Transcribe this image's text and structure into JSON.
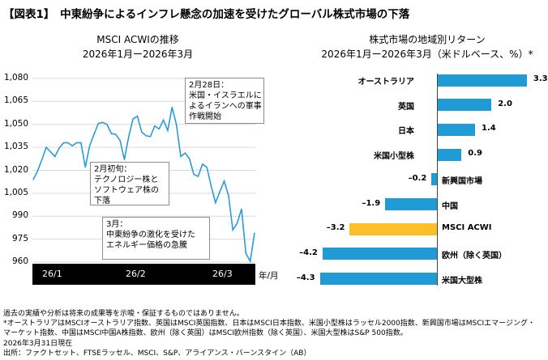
{
  "title": "【図表1】　中東紛争によるインフレ懸念の加速を受けたグローバル株式市場の下落",
  "chart_data": [
    {
      "type": "line",
      "title": "MSCI ACWIの推移",
      "subtitle": "2026年1月ー2026年3月",
      "xlabel": "年/月",
      "x_tick_labels": [
        "26/1",
        "26/2",
        "26/3"
      ],
      "ylim": [
        960,
        1080
      ],
      "y_ticks": [
        "1,080",
        "1,065",
        "1,050",
        "1,035",
        "1,020",
        "1,005",
        "990",
        "975",
        "960"
      ],
      "y_tick_values": [
        1080,
        1065,
        1050,
        1035,
        1020,
        1005,
        990,
        975,
        960
      ],
      "grid": true,
      "color": "#2a9bd8",
      "values": [
        1014,
        1019.5,
        1027,
        1035,
        1032,
        1029,
        1034.6,
        1038,
        1038,
        1036,
        1038,
        1038,
        1022,
        1036,
        1043.4,
        1050.6,
        1051.3,
        1050,
        1044,
        1043.5,
        1039.6,
        1027,
        1042,
        1053.6,
        1055.4,
        1045,
        1042.6,
        1042,
        1049,
        1047,
        1052.8,
        1046,
        1061.2,
        1049.8,
        1029,
        1031.3,
        1027.6,
        1017.3,
        1016,
        1024,
        1022,
        1009.7,
        998.8,
        1006,
        1013,
        1003.5,
        981,
        985.4,
        994.8,
        965.8,
        960.5,
        979
      ],
      "annotations": [
        {
          "id": "feb28",
          "lines": [
            "2月28日：",
            "米国・イスラエルに",
            "よるイランへの軍事",
            "作戦開始"
          ]
        },
        {
          "id": "febearly",
          "lines": [
            "2月初旬：",
            "テクノロジー株と",
            "ソフトウェア株の",
            "下落"
          ]
        },
        {
          "id": "mar",
          "lines": [
            "3月：",
            "中東紛争の激化を受けた",
            "エネルギー価格の急騰"
          ]
        }
      ]
    },
    {
      "type": "bar",
      "orientation": "horizontal",
      "title": "株式市場の地域別リターン",
      "subtitle": "2026年1月ー2026年3月（米ドルベース、%）*",
      "categories": [
        "オーストラリア",
        "英国",
        "日本",
        "米国小型株",
        "新興国市場",
        "中国",
        "MSCI ACWI",
        "欧州（除く英国）",
        "米国大型株"
      ],
      "values": [
        3.3,
        2.0,
        1.4,
        0.9,
        -0.2,
        -1.9,
        -3.2,
        -4.2,
        -4.3
      ],
      "value_labels": [
        "3.3",
        "2.0",
        "1.4",
        "0.9",
        "–0.2",
        "–1.9",
        "–3.2",
        "–4.2",
        "–4.3"
      ],
      "colors": {
        "default": "#219bd6",
        "highlight": "#fbbf27"
      },
      "highlight_category": "MSCI ACWI"
    }
  ],
  "notes": [
    "過去の実績や分析は将来の成果等を示唆・保証するものではありません。",
    "*オーストラリアはMSCIオーストラリア指数、英国はMSCI英国指数、日本はMSCI日本指数、米国小型株はラッセル2000指数、新興国市場はMSCIエマージング・",
    "マーケット指数、中国はMSCI中国A株指数、欧州（除く英国）はMSCI欧州指数（除く英国）、米国大型株はS&P 500指数。",
    "2026年3月31日現在",
    "出所：ファクトセット、FTSEラッセル、MSCI、S&P、アライアンス・バーンスタイン（AB）"
  ]
}
